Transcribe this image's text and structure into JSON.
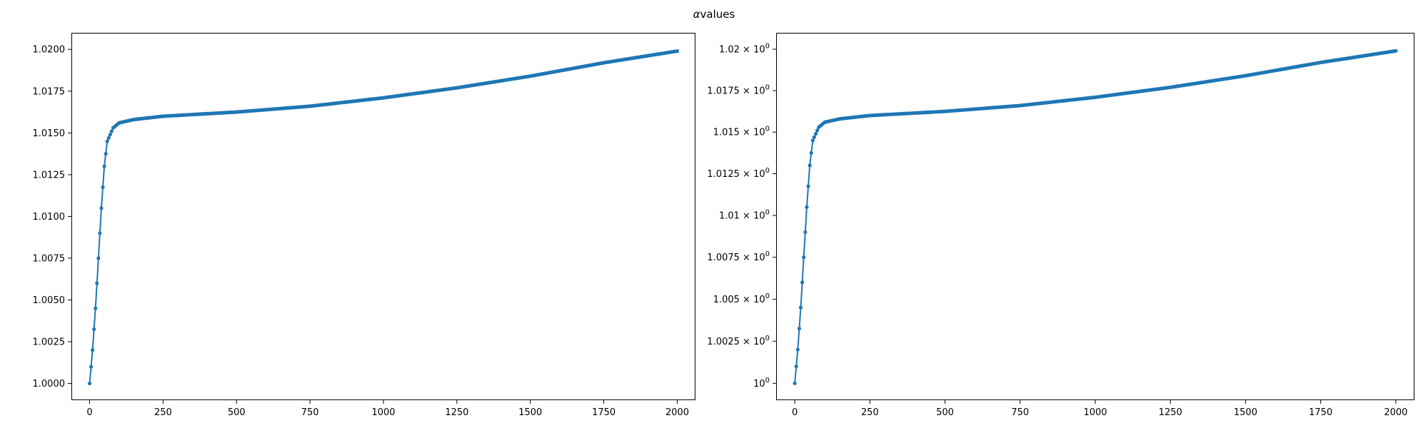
{
  "figure": {
    "suptitle_symbol": "α",
    "suptitle_text": "values"
  },
  "colors": {
    "series": "#1f77b4",
    "axes": "#000000",
    "background": "#ffffff"
  },
  "chart_data": [
    {
      "type": "line",
      "marker": "dot",
      "yscale": "linear",
      "x_formula": "alpha[0]=1, x = 0..2000 step 5",
      "xlim": [
        -62,
        2062
      ],
      "ylim": [
        0.999,
        1.02095
      ],
      "xticks": [
        0,
        250,
        500,
        750,
        1000,
        1250,
        1500,
        1750,
        2000
      ],
      "xtick_labels": [
        "0",
        "250",
        "500",
        "750",
        "1000",
        "1250",
        "1500",
        "1750",
        "2000"
      ],
      "yticks": [
        1.0,
        1.0025,
        1.005,
        1.0075,
        1.01,
        1.0125,
        1.015,
        1.0175,
        1.02
      ],
      "ytick_labels": [
        "1.0000",
        "1.0025",
        "1.0050",
        "1.0075",
        "1.0100",
        "1.0125",
        "1.0150",
        "1.0175",
        "1.0200"
      ],
      "grid": false,
      "series": [
        {
          "x_start": 0,
          "x_end": 2000,
          "x_step": 5,
          "values_description_points": [
            [
              0,
              1.0
            ],
            [
              5,
              1.001
            ],
            [
              10,
              1.002
            ],
            [
              20,
              1.0045
            ],
            [
              30,
              1.0075
            ],
            [
              40,
              1.0105
            ],
            [
              50,
              1.013
            ],
            [
              60,
              1.0145
            ],
            [
              80,
              1.0153
            ],
            [
              100,
              1.0156
            ],
            [
              150,
              1.0158
            ],
            [
              250,
              1.016
            ],
            [
              500,
              1.01625
            ],
            [
              750,
              1.0166
            ],
            [
              1000,
              1.0171
            ],
            [
              1250,
              1.0177
            ],
            [
              1500,
              1.0184
            ],
            [
              1750,
              1.0192
            ],
            [
              2000,
              1.0199
            ]
          ]
        }
      ]
    },
    {
      "type": "line",
      "marker": "dot",
      "yscale": "log",
      "xlim": [
        -62,
        2062
      ],
      "ylim": [
        0.999,
        1.02095
      ],
      "xticks": [
        0,
        250,
        500,
        750,
        1000,
        1250,
        1500,
        1750,
        2000
      ],
      "xtick_labels": [
        "0",
        "250",
        "500",
        "750",
        "1000",
        "1250",
        "1500",
        "1750",
        "2000"
      ],
      "yticks": [
        1.0,
        1.0025,
        1.005,
        1.0075,
        1.01,
        1.0125,
        1.015,
        1.0175,
        1.02
      ],
      "ytick_mantissas": [
        "",
        "1.0025",
        "1.005",
        "1.0075",
        "1.01",
        "1.0125",
        "1.015",
        "1.0175",
        "1.02"
      ],
      "ytick_base": "10",
      "ytick_exponent": "0",
      "ytick_times": "×",
      "grid": false,
      "series": [
        {
          "x_start": 0,
          "x_end": 2000,
          "x_step": 5,
          "values_description_points": [
            [
              0,
              1.0
            ],
            [
              5,
              1.001
            ],
            [
              10,
              1.002
            ],
            [
              20,
              1.0045
            ],
            [
              30,
              1.0075
            ],
            [
              40,
              1.0105
            ],
            [
              50,
              1.013
            ],
            [
              60,
              1.0145
            ],
            [
              80,
              1.0153
            ],
            [
              100,
              1.0156
            ],
            [
              150,
              1.0158
            ],
            [
              250,
              1.016
            ],
            [
              500,
              1.01625
            ],
            [
              750,
              1.0166
            ],
            [
              1000,
              1.0171
            ],
            [
              1250,
              1.0177
            ],
            [
              1500,
              1.0184
            ],
            [
              1750,
              1.0192
            ],
            [
              2000,
              1.0199
            ]
          ]
        }
      ]
    }
  ]
}
